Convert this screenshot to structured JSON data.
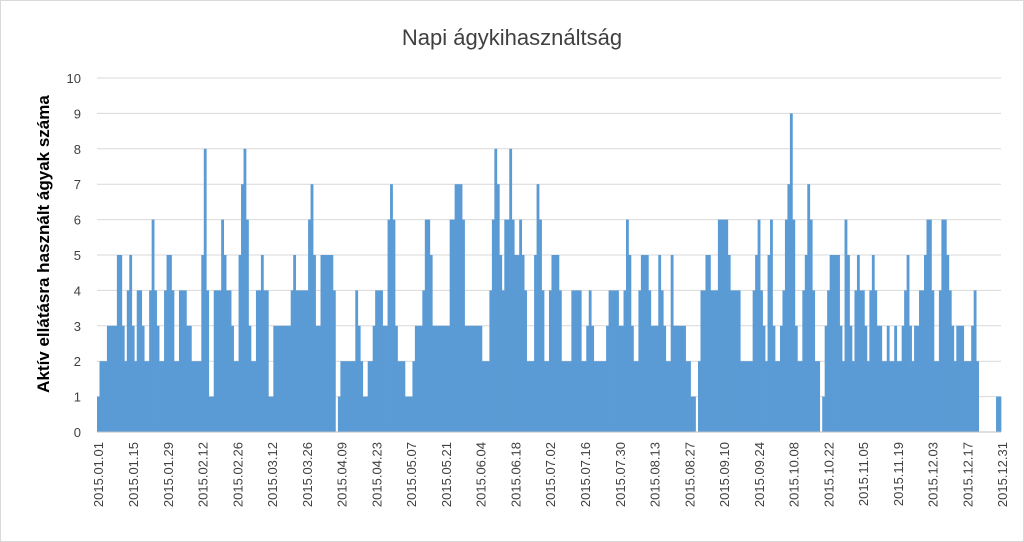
{
  "chart_data": {
    "type": "bar",
    "title": "Napi ágykihasználtság",
    "ylabel": "Aktív ellátásra használt ágyak száma",
    "xlabel": "",
    "ylim": [
      0,
      10
    ],
    "yticks": [
      "0",
      "1",
      "2",
      "3",
      "4",
      "5",
      "6",
      "7",
      "8",
      "9",
      "10"
    ],
    "x_start": "2015.01.01",
    "x_tick_labels": [
      "2015.01.01",
      "2015.01.15",
      "2015.01.29",
      "2015.02.12",
      "2015.02.26",
      "2015.03.12",
      "2015.03.26",
      "2015.04.09",
      "2015.04.23",
      "2015.05.07",
      "2015.05.21",
      "2015.06.04",
      "2015.06.18",
      "2015.07.02",
      "2015.07.16",
      "2015.07.30",
      "2015.08.13",
      "2015.08.27",
      "2015.09.10",
      "2015.09.24",
      "2015.10.08",
      "2015.10.22",
      "2015.11.05",
      "2015.11.19",
      "2015.12.03",
      "2015.12.17",
      "2015.12.31"
    ],
    "grid": true,
    "legend": "none",
    "bar_color": "#5b9bd5",
    "values": [
      1,
      2,
      2,
      2,
      3,
      3,
      3,
      3,
      5,
      5,
      3,
      2,
      4,
      5,
      3,
      2,
      4,
      4,
      3,
      2,
      2,
      4,
      6,
      4,
      3,
      2,
      2,
      4,
      5,
      5,
      4,
      2,
      2,
      4,
      4,
      4,
      3,
      3,
      2,
      2,
      2,
      2,
      5,
      8,
      4,
      1,
      1,
      4,
      4,
      4,
      6,
      5,
      4,
      4,
      3,
      2,
      2,
      5,
      7,
      8,
      6,
      3,
      2,
      2,
      4,
      4,
      5,
      4,
      4,
      1,
      1,
      3,
      3,
      3,
      3,
      3,
      3,
      3,
      4,
      5,
      4,
      4,
      4,
      4,
      4,
      6,
      7,
      5,
      3,
      3,
      5,
      5,
      5,
      5,
      5,
      4,
      0,
      1,
      2,
      2,
      2,
      2,
      2,
      2,
      4,
      3,
      2,
      1,
      1,
      2,
      2,
      3,
      4,
      4,
      4,
      3,
      3,
      6,
      7,
      6,
      3,
      2,
      2,
      2,
      1,
      1,
      1,
      2,
      3,
      3,
      3,
      4,
      6,
      6,
      5,
      3,
      3,
      3,
      3,
      3,
      3,
      3,
      6,
      6,
      7,
      7,
      7,
      6,
      3,
      3,
      3,
      3,
      3,
      3,
      3,
      2,
      2,
      2,
      4,
      6,
      8,
      7,
      5,
      4,
      6,
      6,
      8,
      6,
      5,
      5,
      6,
      5,
      4,
      2,
      2,
      2,
      5,
      7,
      6,
      4,
      2,
      2,
      4,
      5,
      5,
      5,
      4,
      2,
      2,
      2,
      2,
      4,
      4,
      4,
      4,
      2,
      2,
      3,
      4,
      3,
      2,
      2,
      2,
      2,
      2,
      3,
      4,
      4,
      4,
      4,
      3,
      3,
      4,
      6,
      5,
      3,
      2,
      2,
      4,
      5,
      5,
      5,
      4,
      3,
      3,
      3,
      5,
      4,
      3,
      2,
      2,
      5,
      3,
      3,
      3,
      3,
      3,
      2,
      2,
      1,
      1,
      0,
      2,
      4,
      4,
      5,
      5,
      4,
      4,
      4,
      6,
      6,
      6,
      6,
      5,
      4,
      4,
      4,
      4,
      2,
      2,
      2,
      2,
      2,
      4,
      5,
      6,
      4,
      3,
      2,
      5,
      6,
      3,
      2,
      2,
      3,
      4,
      6,
      7,
      9,
      6,
      3,
      2,
      2,
      4,
      5,
      7,
      6,
      4,
      2,
      2,
      0,
      1,
      3,
      4,
      5,
      5,
      5,
      5,
      3,
      2,
      6,
      5,
      3,
      2,
      4,
      5,
      4,
      4,
      3,
      2,
      4,
      5,
      4,
      3,
      3,
      2,
      2,
      3,
      2,
      2,
      3,
      2,
      2,
      3,
      4,
      5,
      3,
      2,
      3,
      3,
      4,
      4,
      5,
      6,
      6,
      4,
      2,
      2,
      4,
      6,
      6,
      5,
      4,
      3,
      2,
      3,
      3,
      3,
      2,
      2,
      2,
      3,
      4,
      2,
      0,
      0,
      0,
      0,
      0,
      0,
      0,
      1,
      1
    ]
  }
}
